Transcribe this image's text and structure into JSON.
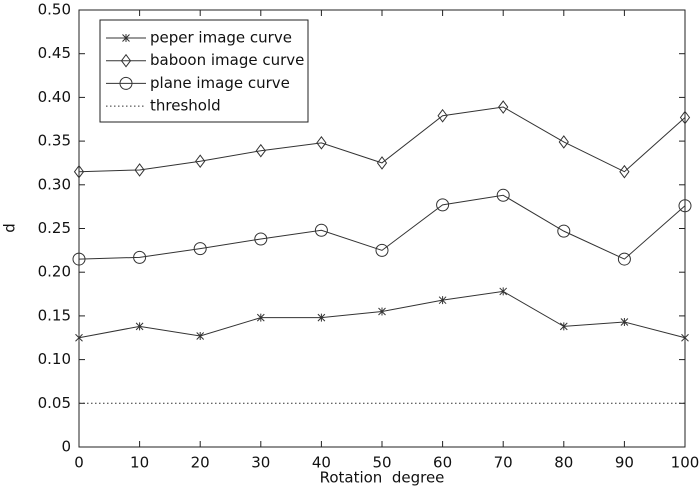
{
  "chart_data": {
    "type": "line",
    "xlabel": "Rotation  degree",
    "ylabel": "d",
    "x": [
      0,
      10,
      20,
      30,
      40,
      50,
      60,
      70,
      80,
      90,
      100
    ],
    "xlim": [
      0,
      100
    ],
    "xticks": [
      0,
      10,
      20,
      30,
      40,
      50,
      60,
      70,
      80,
      90,
      100
    ],
    "ylim": [
      0,
      0.5
    ],
    "yticks": [
      0,
      0.05,
      {
        "value": 0.1,
        "label": "0.10"
      },
      0.15,
      {
        "value": 0.2,
        "label": "0.20"
      },
      0.25,
      {
        "value": 0.3,
        "label": "0.30"
      },
      0.35,
      {
        "value": 0.4,
        "label": "0.40"
      },
      0.45,
      {
        "value": 0.5,
        "label": "0.50"
      }
    ],
    "grid": false,
    "legend": "upper-left",
    "series": [
      {
        "name": "peper image curve",
        "color": "#333333",
        "marker": "star",
        "values": [
          0.125,
          0.138,
          0.127,
          0.148,
          0.148,
          0.155,
          0.168,
          0.178,
          0.138,
          0.143,
          0.125
        ]
      },
      {
        "name": "baboon image curve",
        "color": "#333333",
        "marker": "diamond",
        "values": [
          0.315,
          0.317,
          0.327,
          0.339,
          0.348,
          0.325,
          0.379,
          0.389,
          0.349,
          0.315,
          0.377
        ]
      },
      {
        "name": "plane image curve",
        "color": "#333333",
        "marker": "circle",
        "values": [
          0.215,
          0.217,
          0.227,
          0.238,
          0.248,
          0.225,
          0.277,
          0.288,
          0.247,
          0.215,
          0.276
        ]
      },
      {
        "name": "threshold",
        "color": "#333333",
        "linestyle": "dotted",
        "values": [
          0.05,
          0.05,
          0.05,
          0.05,
          0.05,
          0.05,
          0.05,
          0.05,
          0.05,
          0.05,
          0.05
        ]
      }
    ]
  }
}
